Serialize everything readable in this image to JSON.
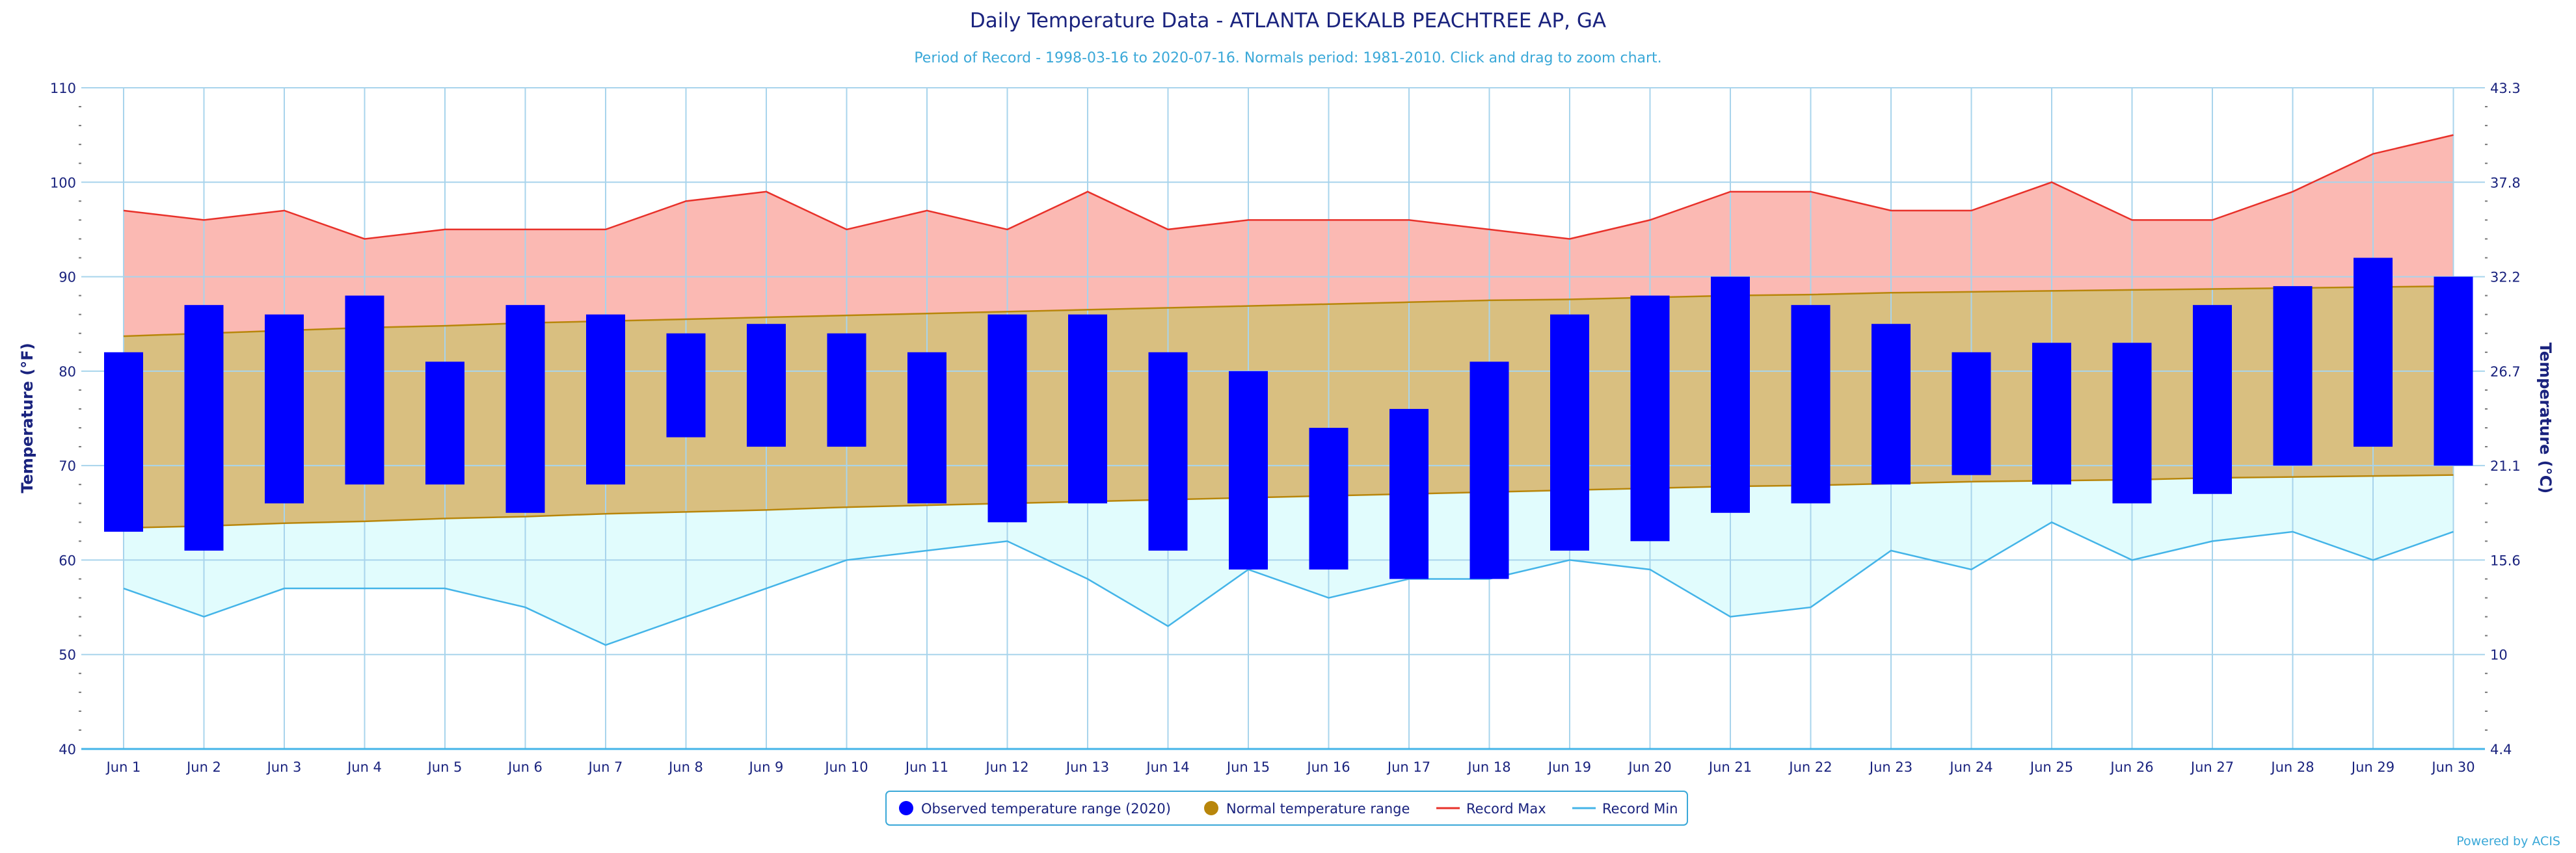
{
  "chart_data": {
    "type": "bar",
    "title": "Daily Temperature Data - ATLANTA DEKALB PEACHTREE AP, GA",
    "subtitle": "Period of Record - 1998-03-16 to 2020-07-16. Normals period: 1981-2010. Click and drag to zoom chart.",
    "ylabel_left": "Temperature (°F)",
    "ylabel_right": "Temperature (°C)",
    "ylim": [
      40,
      110
    ],
    "yticks_left": [
      "40",
      "50",
      "60",
      "70",
      "80",
      "90",
      "100",
      "110"
    ],
    "yticks_right": [
      "4.4",
      "10",
      "15.6",
      "21.1",
      "26.7",
      "32.2",
      "37.8",
      "43.3"
    ],
    "grid": true,
    "legend_position": "bottom-center",
    "categories": [
      "Jun 1",
      "Jun 2",
      "Jun 3",
      "Jun 4",
      "Jun 5",
      "Jun 6",
      "Jun 7",
      "Jun 8",
      "Jun 9",
      "Jun 10",
      "Jun 11",
      "Jun 12",
      "Jun 13",
      "Jun 14",
      "Jun 15",
      "Jun 16",
      "Jun 17",
      "Jun 18",
      "Jun 19",
      "Jun 20",
      "Jun 21",
      "Jun 22",
      "Jun 23",
      "Jun 24",
      "Jun 25",
      "Jun 26",
      "Jun 27",
      "Jun 28",
      "Jun 29",
      "Jun 30"
    ],
    "series": [
      {
        "name": "Observed temperature range (2020)",
        "kind": "range-bar",
        "color": "#0000ff",
        "low": [
          63,
          61,
          66,
          68,
          68,
          65,
          68,
          73,
          72,
          72,
          66,
          64,
          66,
          61,
          59,
          59,
          58,
          58,
          61,
          62,
          65,
          66,
          68,
          69,
          68,
          66,
          67,
          70,
          72,
          70
        ],
        "high": [
          82,
          87,
          86,
          88,
          81,
          87,
          86,
          84,
          85,
          84,
          82,
          86,
          86,
          82,
          80,
          74,
          76,
          81,
          86,
          88,
          90,
          87,
          85,
          82,
          83,
          83,
          87,
          89,
          92,
          90
        ]
      },
      {
        "name": "Normal temperature range",
        "kind": "range-area",
        "color": "#b8860b",
        "fill": "#d9bf80",
        "low": [
          63.4,
          63.6,
          63.9,
          64.1,
          64.4,
          64.6,
          64.9,
          65.1,
          65.3,
          65.6,
          65.8,
          66.0,
          66.2,
          66.4,
          66.6,
          66.8,
          67.0,
          67.2,
          67.4,
          67.6,
          67.8,
          67.9,
          68.1,
          68.3,
          68.4,
          68.5,
          68.7,
          68.8,
          68.9,
          69.0
        ],
        "high": [
          83.7,
          84.0,
          84.3,
          84.6,
          84.8,
          85.1,
          85.3,
          85.5,
          85.7,
          85.9,
          86.1,
          86.3,
          86.5,
          86.7,
          86.9,
          87.1,
          87.3,
          87.5,
          87.6,
          87.8,
          88.0,
          88.1,
          88.3,
          88.4,
          88.5,
          88.6,
          88.7,
          88.8,
          88.9,
          89.0
        ]
      },
      {
        "name": "Record Max",
        "kind": "line",
        "color": "#e8312a",
        "fill": "#fbb9b3",
        "values": [
          97,
          96,
          97,
          94,
          95,
          95,
          95,
          98,
          99,
          95,
          97,
          95,
          99,
          95,
          96,
          96,
          96,
          95,
          94,
          96,
          99,
          99,
          97,
          97,
          100,
          96,
          96,
          99,
          103,
          105
        ]
      },
      {
        "name": "Record Min",
        "kind": "line",
        "color": "#44b4e8",
        "fill": "#e1fcfd",
        "values": [
          57,
          54,
          57,
          57,
          57,
          55,
          51,
          54,
          57,
          60,
          61,
          62,
          58,
          53,
          59,
          56,
          58,
          58,
          60,
          59,
          54,
          55,
          61,
          59,
          64,
          60,
          62,
          63,
          60,
          63
        ]
      }
    ],
    "credit": "Powered by ACIS"
  }
}
